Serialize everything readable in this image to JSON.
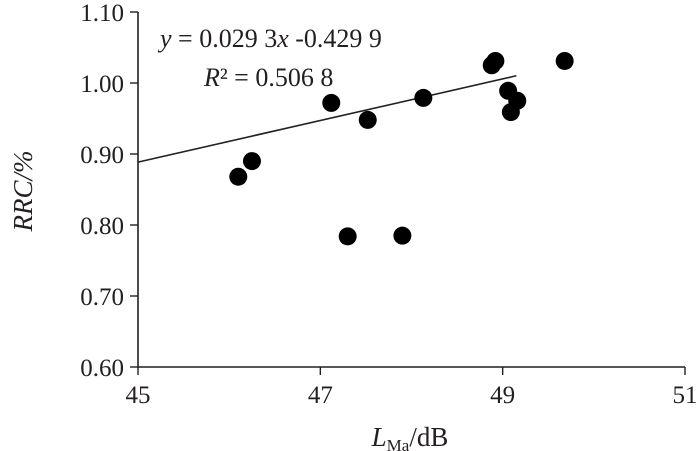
{
  "chart_data": {
    "type": "scatter",
    "xlabel_main": "L",
    "xlabel_sub": "Ma",
    "xlabel_unit": "/dB",
    "ylabel": "RRC/%",
    "xlim": [
      45,
      51
    ],
    "ylim": [
      0.6,
      1.1
    ],
    "x_ticks": [
      45,
      47,
      49,
      51
    ],
    "x_tick_labels": [
      "45",
      "47",
      "49",
      "51"
    ],
    "y_ticks": [
      0.6,
      0.7,
      0.8,
      0.9,
      1.0,
      1.1
    ],
    "y_tick_labels": [
      "0.60",
      "0.70",
      "0.80",
      "0.90",
      "1.00",
      "1.10"
    ],
    "grid": false,
    "points": [
      {
        "x": 46.1,
        "y": 0.868
      },
      {
        "x": 46.25,
        "y": 0.89
      },
      {
        "x": 47.12,
        "y": 0.972
      },
      {
        "x": 47.3,
        "y": 0.784
      },
      {
        "x": 47.52,
        "y": 0.948
      },
      {
        "x": 47.9,
        "y": 0.785
      },
      {
        "x": 48.13,
        "y": 0.979
      },
      {
        "x": 48.88,
        "y": 1.025
      },
      {
        "x": 48.92,
        "y": 1.031
      },
      {
        "x": 49.06,
        "y": 0.989
      },
      {
        "x": 49.09,
        "y": 0.959
      },
      {
        "x": 49.16,
        "y": 0.975
      },
      {
        "x": 49.68,
        "y": 1.031
      }
    ],
    "trendline": {
      "slope": 0.0293,
      "intercept": -0.4299,
      "x_range": [
        45,
        49.15
      ]
    },
    "annotations": {
      "eq_y": "y",
      "eq_rest": " = 0.029 3",
      "eq_x": "x",
      "eq_tail": " -0.429 9",
      "r2_r": "R",
      "r2_rest": "² = 0.506 8"
    }
  }
}
